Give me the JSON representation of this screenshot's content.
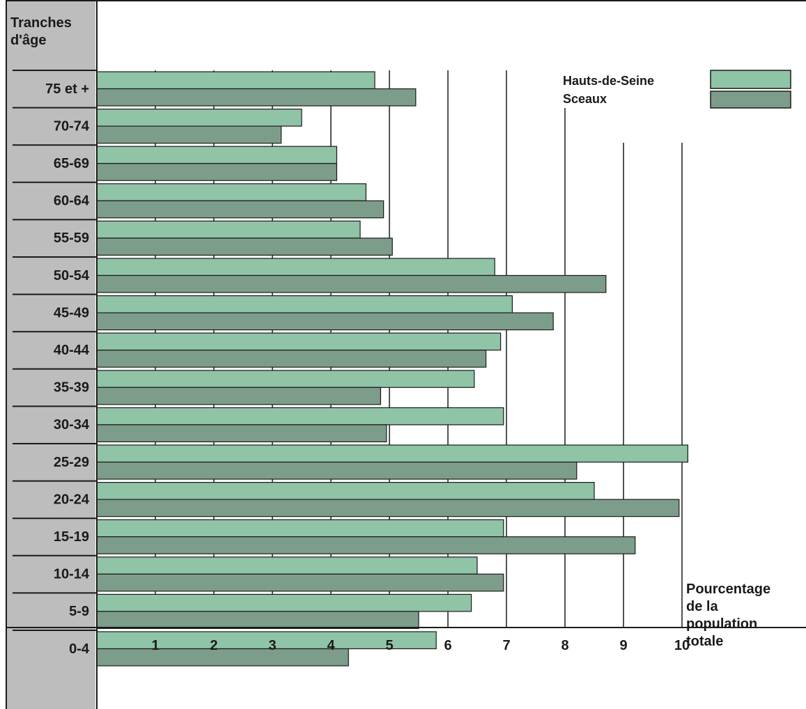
{
  "chart_data": {
    "type": "bar",
    "orientation": "horizontal",
    "title": "",
    "ylabel": "Tranches d'âge",
    "xlabel": "Pourcentage de la population totale",
    "xlabel_lines": [
      "Pourcentage",
      "de la",
      "population",
      "totale"
    ],
    "ylabel_lines": [
      "Tranches",
      "d'âge"
    ],
    "categories": [
      "75 et +",
      "70-74",
      "65-69",
      "60-64",
      "55-59",
      "50-54",
      "45-49",
      "40-44",
      "35-39",
      "30-34",
      "25-29",
      "20-24",
      "15-19",
      "10-14",
      "5-9",
      "0-4"
    ],
    "series": [
      {
        "name": "Hauts-de-Seine",
        "color": "#8fc4a6",
        "values": [
          4.75,
          3.5,
          4.1,
          4.6,
          4.5,
          6.8,
          7.1,
          6.9,
          6.45,
          6.95,
          10.1,
          8.5,
          6.95,
          6.5,
          6.4,
          5.8
        ]
      },
      {
        "name": "Sceaux",
        "color": "#7d9d8b",
        "values": [
          5.45,
          3.15,
          4.1,
          4.9,
          5.05,
          8.7,
          7.8,
          6.65,
          4.85,
          4.95,
          8.2,
          9.95,
          9.2,
          6.95,
          5.5,
          4.3
        ]
      }
    ],
    "xticks": [
      "1",
      "2",
      "3",
      "4",
      "5",
      "6",
      "7",
      "8",
      "9",
      "10"
    ],
    "xlim": [
      0,
      12
    ],
    "grid": true,
    "legend_position": "top-right",
    "label_panel_color": "#bdbdbd"
  }
}
